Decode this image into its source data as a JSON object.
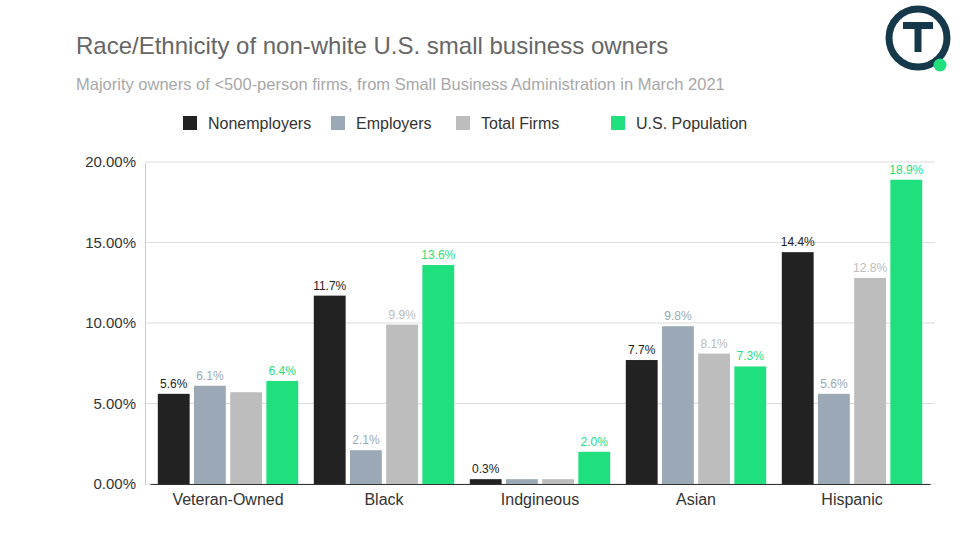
{
  "chart_data": {
    "type": "bar",
    "title": "Race/Ethnicity of non-white U.S. small business owners",
    "subtitle": "Majority owners of <500-person firms, from Small Business Administration in March 2021",
    "categories": [
      "Veteran-Owned",
      "Black",
      "Indgineous",
      "Asian",
      "Hispanic"
    ],
    "series": [
      {
        "name": "Nonemployers",
        "color": "#222222",
        "values": [
          5.6,
          11.7,
          0.3,
          7.7,
          14.4
        ],
        "value_labels": [
          "5.6%",
          "11.7%",
          "0.3%",
          "7.7%",
          "14.4%"
        ]
      },
      {
        "name": "Employers",
        "color": "#9aa9b5",
        "values": [
          6.1,
          2.1,
          0.3,
          9.8,
          5.6
        ],
        "value_labels": [
          "6.1%",
          "2.1%",
          null,
          "9.8%",
          "5.6%"
        ]
      },
      {
        "name": "Total Firms",
        "color": "#bdbdbd",
        "values": [
          5.7,
          9.9,
          0.3,
          8.1,
          12.8
        ],
        "value_labels": [
          null,
          "9.9%",
          null,
          "8.1%",
          "12.8%"
        ]
      },
      {
        "name": "U.S. Population",
        "color": "#1fe07c",
        "values": [
          6.4,
          13.6,
          2.0,
          7.3,
          18.9
        ],
        "value_labels": [
          "6.4%",
          "13.6%",
          "2.0%",
          "7.3%",
          "18.9%"
        ]
      }
    ],
    "ylim": [
      0,
      20
    ],
    "yticks": [
      {
        "value": 0,
        "label": "0.00%"
      },
      {
        "value": 5,
        "label": "5.00%"
      },
      {
        "value": 10,
        "label": "10.00%"
      },
      {
        "value": 15,
        "label": "15.00%"
      },
      {
        "value": 20,
        "label": "20.00%"
      }
    ],
    "grid": true,
    "legend": "top",
    "data_labels": true
  }
}
